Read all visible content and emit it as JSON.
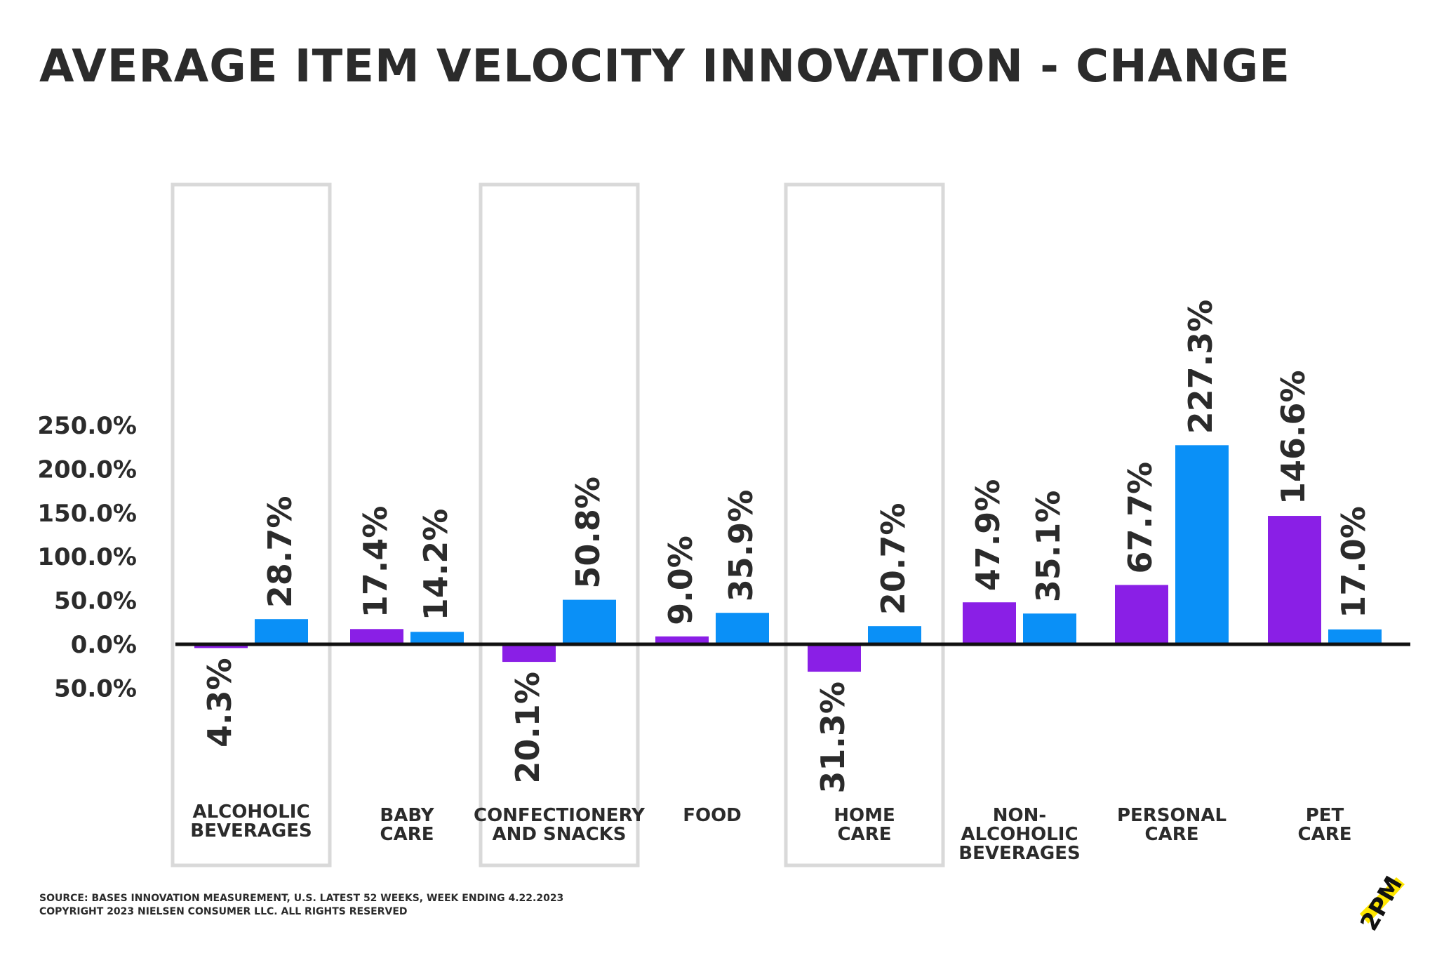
{
  "chart_data": {
    "type": "bar",
    "title": "AVERAGE ITEM VELOCITY INNOVATION - CHANGE",
    "categories": [
      [
        "ALCOHOLIC",
        "BEVERAGES"
      ],
      [
        "BABY",
        "CARE"
      ],
      [
        "CONFECTIONERY",
        "AND SNACKS"
      ],
      [
        "FOOD"
      ],
      [
        "HOME",
        "CARE"
      ],
      [
        "NON-",
        "ALCOHOLIC",
        "BEVERAGES"
      ],
      [
        "PERSONAL",
        "CARE"
      ],
      [
        "PET",
        "CARE"
      ]
    ],
    "series": [
      {
        "name": "series-purple",
        "color": "#8a1fe6",
        "values": [
          -4.3,
          17.4,
          -20.1,
          9.0,
          -31.3,
          47.9,
          67.7,
          146.6
        ]
      },
      {
        "name": "series-blue",
        "color": "#0a90f7",
        "values": [
          28.7,
          14.2,
          50.8,
          35.9,
          20.7,
          35.1,
          227.3,
          17.0
        ]
      }
    ],
    "data_labels": [
      [
        "4.3%",
        "17.4%",
        "20.1%",
        "9.0%",
        "31.3%",
        "47.9%",
        "67.7%",
        "146.6%"
      ],
      [
        "28.7%",
        "14.2%",
        "50.8%",
        "35.9%",
        "20.7%",
        "35.1%",
        "227.3%",
        "17.0%"
      ]
    ],
    "y_ticks": [
      {
        "value": 250,
        "label": "250.0%"
      },
      {
        "value": 200,
        "label": "200.0%"
      },
      {
        "value": 150,
        "label": "150.0%"
      },
      {
        "value": 100,
        "label": "100.0%"
      },
      {
        "value": 50,
        "label": "50.0%"
      },
      {
        "value": 0,
        "label": "0.0%"
      },
      {
        "value": -50,
        "label": "50.0%"
      }
    ],
    "ylim": [
      -50,
      250
    ],
    "highlighted_categories": [
      0,
      2,
      4
    ],
    "grid": false,
    "xlabel": "",
    "ylabel": ""
  },
  "footer": {
    "source": "SOURCE: BASES INNOVATION MEASUREMENT, U.S. LATEST 52 WEEKS, WEEK ENDING 4.22.2023",
    "copyright": "COPYRIGHT 2023 NIELSEN CONSUMER LLC. ALL RIGHTS RESERVED"
  },
  "logo": {
    "text": "2PM"
  },
  "colors": {
    "purple": "#8a1fe6",
    "blue": "#0a90f7",
    "axis": "#111111",
    "highlight_box": "#d9d9d9"
  }
}
